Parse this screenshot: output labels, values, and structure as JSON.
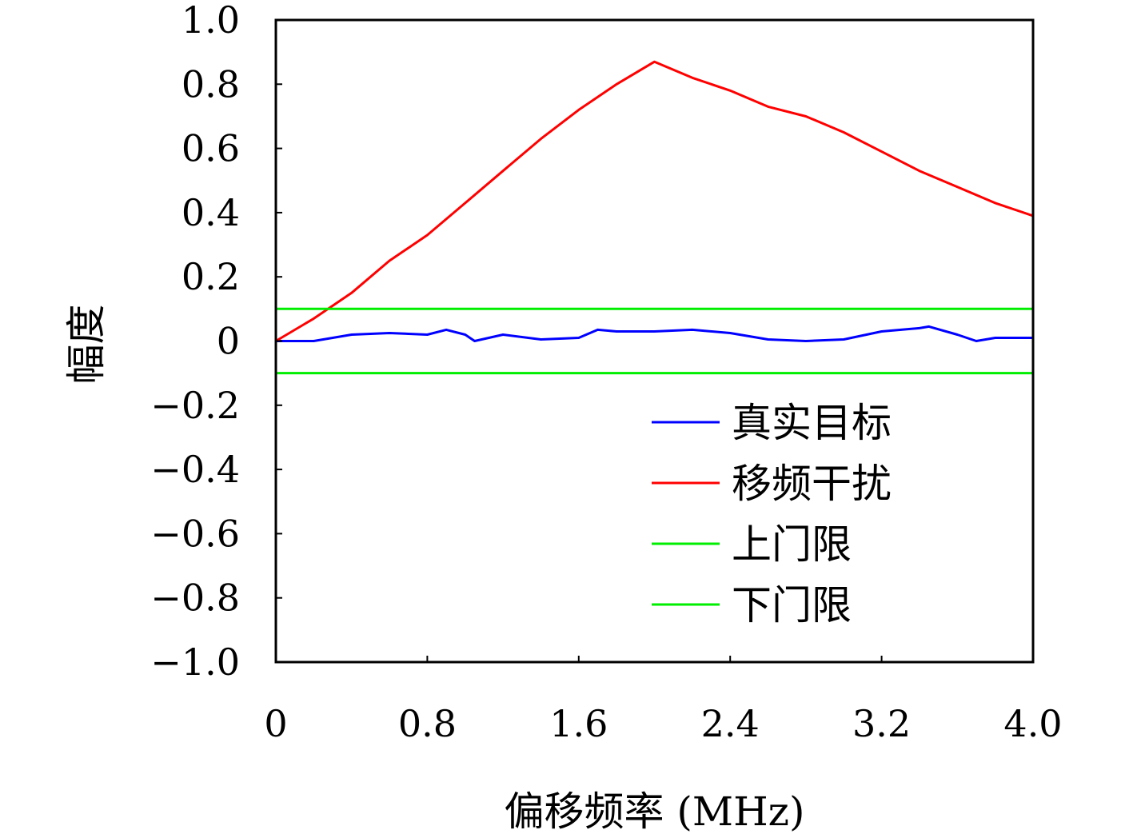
{
  "chart_data": {
    "type": "line",
    "xlabel": "偏移频率 (MHz)",
    "ylabel": "幅度",
    "xlim": [
      0,
      4.0
    ],
    "ylim": [
      -1.0,
      1.0
    ],
    "xticks": [
      "0",
      "0.8",
      "1.6",
      "2.4",
      "3.2",
      "4.0"
    ],
    "yticks": [
      "1.0",
      "0.8",
      "0.6",
      "0.4",
      "0.2",
      "0",
      "−0.2",
      "−0.4",
      "−0.6",
      "−0.8",
      "−1.0"
    ],
    "grid": false,
    "legend_position": "lower-right",
    "series": [
      {
        "name": "真实目标",
        "color": "#0000ff",
        "x": [
          0,
          0.2,
          0.4,
          0.6,
          0.8,
          0.9,
          1.0,
          1.05,
          1.2,
          1.4,
          1.6,
          1.7,
          1.8,
          2.0,
          2.2,
          2.4,
          2.6,
          2.8,
          3.0,
          3.2,
          3.4,
          3.45,
          3.6,
          3.7,
          3.8,
          4.0
        ],
        "y": [
          0.0,
          0.0,
          0.02,
          0.025,
          0.02,
          0.035,
          0.02,
          0.0,
          0.02,
          0.005,
          0.01,
          0.035,
          0.03,
          0.03,
          0.035,
          0.025,
          0.005,
          0.0,
          0.005,
          0.03,
          0.04,
          0.045,
          0.02,
          0.0,
          0.01,
          0.01
        ]
      },
      {
        "name": "移频干扰",
        "color": "#ff0000",
        "x": [
          0,
          0.2,
          0.4,
          0.6,
          0.8,
          1.0,
          1.2,
          1.4,
          1.6,
          1.8,
          2.0,
          2.2,
          2.4,
          2.6,
          2.8,
          3.0,
          3.2,
          3.4,
          3.6,
          3.8,
          4.0
        ],
        "y": [
          0.0,
          0.07,
          0.15,
          0.25,
          0.33,
          0.43,
          0.53,
          0.63,
          0.72,
          0.8,
          0.87,
          0.82,
          0.78,
          0.73,
          0.7,
          0.65,
          0.59,
          0.53,
          0.48,
          0.43,
          0.39
        ]
      },
      {
        "name": "上门限",
        "color": "#00ee00",
        "x": [
          0,
          4.0
        ],
        "y": [
          0.1,
          0.1
        ]
      },
      {
        "name": "下门限",
        "color": "#00ee00",
        "x": [
          0,
          4.0
        ],
        "y": [
          -0.1,
          -0.1
        ]
      }
    ]
  }
}
